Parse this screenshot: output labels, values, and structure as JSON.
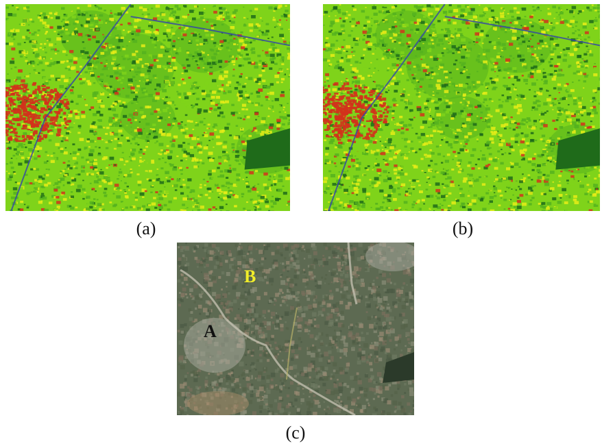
{
  "figure": {
    "panels": [
      {
        "id": "a",
        "caption": "(a)",
        "kind": "classification-map"
      },
      {
        "id": "b",
        "caption": "(b)",
        "kind": "classification-map"
      },
      {
        "id": "c",
        "caption": "(c)",
        "kind": "satellite-image"
      }
    ],
    "satellite_labels": {
      "A": {
        "text": "A",
        "color": "#111111"
      },
      "B": {
        "text": "B",
        "color": "#f2ee2a"
      }
    },
    "palette": {
      "vegetation_light": "#7fd31a",
      "vegetation_mid": "#55b21f",
      "vegetation_dark": "#1f6b1a",
      "sparse_yellow": "#e6ec17",
      "bare_red": "#d2321c",
      "road_blue": "#3344aa",
      "satellite_base": "#5d6a52"
    }
  }
}
